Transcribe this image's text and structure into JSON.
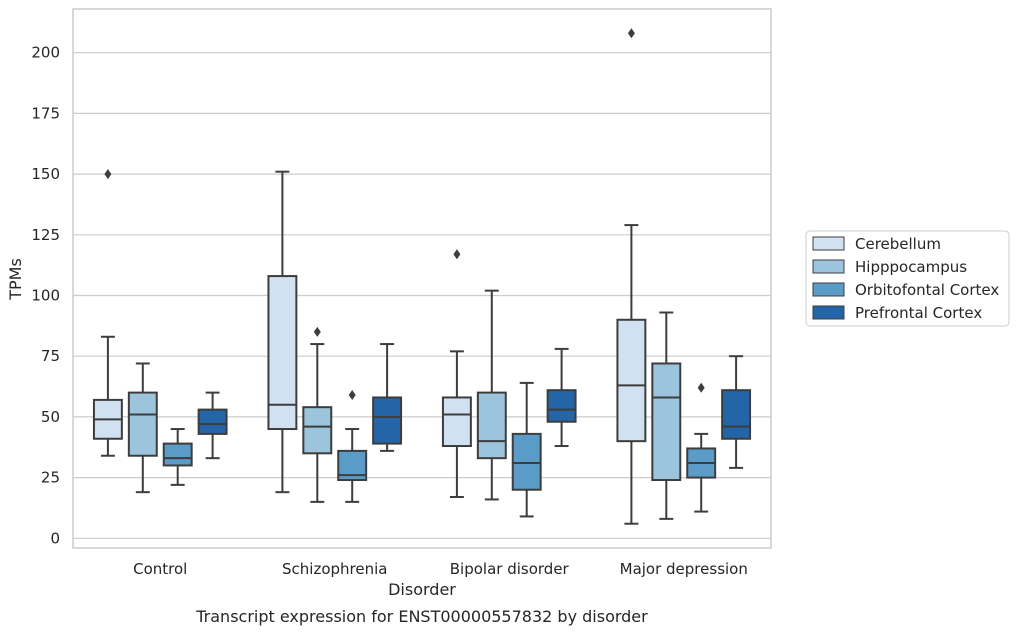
{
  "chart_data": {
    "type": "box",
    "title": "",
    "caption": "Transcript expression for ENST00000557832 by disorder",
    "xlabel": "Disorder",
    "ylabel": "TPMs",
    "ylim": [
      -4,
      218
    ],
    "yticks": [
      0,
      25,
      50,
      75,
      100,
      125,
      150,
      175,
      200
    ],
    "grid": "horizontal",
    "legend_position": "right",
    "categories": [
      "Control",
      "Schizophrenia",
      "Bipolar disorder",
      "Major depression"
    ],
    "series": [
      {
        "name": "Cerebellum",
        "color": "#d1e1f1",
        "boxes": [
          {
            "whisker_low": 34,
            "q1": 41,
            "median": 49,
            "q3": 57,
            "whisker_high": 83,
            "outliers": [
              150
            ]
          },
          {
            "whisker_low": 19,
            "q1": 45,
            "median": 55,
            "q3": 108,
            "whisker_high": 151,
            "outliers": []
          },
          {
            "whisker_low": 17,
            "q1": 38,
            "median": 51,
            "q3": 58,
            "whisker_high": 77,
            "outliers": [
              117
            ]
          },
          {
            "whisker_low": 6,
            "q1": 40,
            "median": 63,
            "q3": 90,
            "whisker_high": 129,
            "outliers": [
              208
            ]
          }
        ]
      },
      {
        "name": "Hipppocampus",
        "color": "#9dc4dd",
        "boxes": [
          {
            "whisker_low": 19,
            "q1": 34,
            "median": 51,
            "q3": 60,
            "whisker_high": 72,
            "outliers": []
          },
          {
            "whisker_low": 15,
            "q1": 35,
            "median": 46,
            "q3": 54,
            "whisker_high": 80,
            "outliers": [
              85
            ]
          },
          {
            "whisker_low": 16,
            "q1": 33,
            "median": 40,
            "q3": 60,
            "whisker_high": 102,
            "outliers": []
          },
          {
            "whisker_low": 8,
            "q1": 24,
            "median": 58,
            "q3": 72,
            "whisker_high": 93,
            "outliers": []
          }
        ]
      },
      {
        "name": "Orbitofontal Cortex",
        "color": "#5a9bc8",
        "boxes": [
          {
            "whisker_low": 22,
            "q1": 30,
            "median": 33,
            "q3": 39,
            "whisker_high": 45,
            "outliers": []
          },
          {
            "whisker_low": 15,
            "q1": 24,
            "median": 26,
            "q3": 36,
            "whisker_high": 45,
            "outliers": [
              59
            ]
          },
          {
            "whisker_low": 9,
            "q1": 20,
            "median": 31,
            "q3": 43,
            "whisker_high": 64,
            "outliers": []
          },
          {
            "whisker_low": 11,
            "q1": 25,
            "median": 31,
            "q3": 37,
            "whisker_high": 43,
            "outliers": [
              62
            ]
          }
        ]
      },
      {
        "name": "Prefrontal Cortex",
        "color": "#2465a7",
        "boxes": [
          {
            "whisker_low": 33,
            "q1": 43,
            "median": 47,
            "q3": 53,
            "whisker_high": 60,
            "outliers": []
          },
          {
            "whisker_low": 36,
            "q1": 39,
            "median": 50,
            "q3": 58,
            "whisker_high": 80,
            "outliers": []
          },
          {
            "whisker_low": 38,
            "q1": 48,
            "median": 53,
            "q3": 61,
            "whisker_high": 78,
            "outliers": []
          },
          {
            "whisker_low": 29,
            "q1": 41,
            "median": 46,
            "q3": 61,
            "whisker_high": 75,
            "outliers": []
          }
        ]
      }
    ]
  }
}
